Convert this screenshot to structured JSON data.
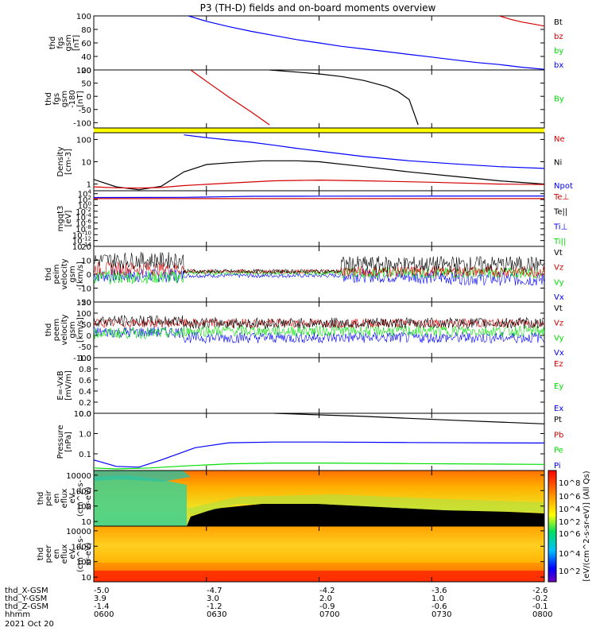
{
  "title": "P3 (TH-D) fields and on-board moments overview",
  "colors": {
    "black": "#000000",
    "red": "#d40000",
    "green": "#00e000",
    "blue": "#0000ff",
    "yellow": "#ffff00"
  },
  "chart_data": [
    {
      "type": "line",
      "panel_id": "fgs-gsm",
      "ylabel": [
        "thd",
        "fgs",
        "gsm",
        "[nT]"
      ],
      "ylim": [
        20,
        100
      ],
      "yticks": [
        "100",
        "80",
        "60",
        "40",
        "20"
      ],
      "legend": [
        {
          "name": "Bt",
          "color": "#000000"
        },
        {
          "name": "bz",
          "color": "#d40000"
        },
        {
          "name": "by",
          "color": "#00e000"
        },
        {
          "name": "bx",
          "color": "#0000ff"
        }
      ],
      "series": [
        {
          "name": "bx",
          "color": "#0000ff",
          "x": [
            6.42,
            6.5,
            6.6,
            6.7,
            6.8,
            6.9,
            7.0,
            7.1,
            7.2,
            7.3,
            7.4,
            7.5,
            7.6,
            7.7,
            7.8,
            7.9,
            8.0
          ],
          "y": [
            100,
            92,
            84,
            77,
            71,
            65,
            60,
            55,
            51,
            47,
            43,
            39,
            35,
            31,
            28,
            24,
            21
          ]
        },
        {
          "name": "bz",
          "color": "#d40000",
          "x": [
            7.8,
            7.85,
            7.9,
            7.95,
            8.0
          ],
          "y": [
            100,
            95,
            91,
            88,
            85
          ]
        }
      ]
    },
    {
      "type": "line",
      "panel_id": "fgs-gsm-180",
      "ylabel": [
        "thd",
        "fgs",
        "gsm",
        "-180",
        "[nT]"
      ],
      "ylim": [
        -120,
        100
      ],
      "yticks": [
        "100",
        "50",
        "0",
        "-50",
        "-100"
      ],
      "legend": [
        {
          "name": "By",
          "color": "#00e000"
        }
      ],
      "series": [
        {
          "name": "red",
          "color": "#d40000",
          "x": [
            6.43,
            6.5,
            6.6,
            6.7,
            6.78
          ],
          "y": [
            100,
            57,
            -3,
            -60,
            -108
          ]
        },
        {
          "name": "black",
          "color": "#000000",
          "x": [
            6.78,
            6.9,
            7.0,
            7.1,
            7.2,
            7.3,
            7.35,
            7.4,
            7.44
          ],
          "y": [
            100,
            92,
            85,
            75,
            60,
            37,
            18,
            -12,
            -108
          ]
        }
      ]
    },
    {
      "type": "line",
      "panel_id": "density",
      "ylabel": [
        "Density",
        "[cm-3]"
      ],
      "ylim": [
        0.5,
        200
      ],
      "yscale": "log",
      "yticks": [
        "100",
        "10",
        "1"
      ],
      "legend": [
        {
          "name": "Ne",
          "color": "#d40000"
        },
        {
          "name": "Ni",
          "color": "#000000"
        },
        {
          "name": "Npot",
          "color": "#0000ff"
        }
      ],
      "series": [
        {
          "name": "Ni",
          "color": "#000000",
          "x": [
            6.0,
            6.1,
            6.2,
            6.3,
            6.4,
            6.5,
            6.6,
            6.75,
            6.9,
            7.0,
            7.2,
            7.4,
            7.6,
            7.8,
            8.0
          ],
          "y": [
            1.6,
            0.75,
            0.55,
            0.8,
            3.5,
            7.5,
            9,
            11,
            11,
            10,
            6,
            3.5,
            2.2,
            1.4,
            1.0
          ]
        },
        {
          "name": "Ne",
          "color": "#d40000",
          "x": [
            6.0,
            6.1,
            6.2,
            6.3,
            6.4,
            6.6,
            6.8,
            7.0,
            7.2,
            7.5,
            7.8,
            8.0
          ],
          "y": [
            0.75,
            0.68,
            0.66,
            0.7,
            0.85,
            1.1,
            1.4,
            1.5,
            1.4,
            1.2,
            1.0,
            0.95
          ]
        },
        {
          "name": "Npot",
          "color": "#0000ff",
          "x": [
            6.4,
            6.5,
            6.6,
            6.7,
            6.8,
            6.9,
            7.0,
            7.2,
            7.4,
            7.6,
            7.8,
            8.0
          ],
          "y": [
            160,
            120,
            95,
            75,
            55,
            40,
            30,
            17,
            11,
            8,
            6,
            5
          ]
        }
      ]
    },
    {
      "type": "line",
      "panel_id": "temperature",
      "ylabel": [
        "mgqt3",
        "[eV]"
      ],
      "ylim": [
        -14,
        5
      ],
      "yscale": "log",
      "yticks": [
        "10^4",
        "10^2",
        "10^0",
        "10^-2",
        "10^-4",
        "10^-6",
        "10^-8",
        "10^-10",
        "10^-12",
        "10^-14"
      ],
      "legend": [
        {
          "name": "Te⊥",
          "color": "#d40000"
        },
        {
          "name": "Te||",
          "color": "#000000"
        },
        {
          "name": "Ti⊥",
          "color": "#0000ff"
        },
        {
          "name": "Ti||",
          "color": "#00e000"
        }
      ],
      "series": [
        {
          "name": "Ti",
          "color": "#0000ff",
          "x": [
            6.0,
            6.4,
            6.55,
            6.7,
            7.0,
            8.0
          ],
          "y": [
            2.7,
            2.75,
            2.9,
            3.1,
            3.15,
            3.2
          ]
        },
        {
          "name": "Te",
          "color": "#d40000",
          "x": [
            6.0,
            8.0
          ],
          "y": [
            2.3,
            2.3
          ]
        }
      ]
    },
    {
      "type": "line",
      "panel_id": "ion-velocity",
      "ylabel": [
        "thd",
        "peim",
        "velocity",
        "gsm",
        "[km/s]"
      ],
      "ylim": [
        -20,
        20
      ],
      "yticks": [
        "20",
        "10",
        "0",
        "-10",
        "-20"
      ],
      "legend": [
        {
          "name": "Vt",
          "color": "#000000"
        },
        {
          "name": "Vz",
          "color": "#d40000"
        },
        {
          "name": "Vy",
          "color": "#00e000"
        },
        {
          "name": "Vx",
          "color": "#0000ff"
        }
      ]
    },
    {
      "type": "line",
      "panel_id": "electron-velocity",
      "ylabel": [
        "thd",
        "peem",
        "velocity",
        "gsm",
        "[km/s]"
      ],
      "ylim": [
        -100,
        150
      ],
      "yticks": [
        "150",
        "100",
        "50",
        "0",
        "-50",
        "-100"
      ],
      "legend": [
        {
          "name": "Vt",
          "color": "#000000"
        },
        {
          "name": "Vz",
          "color": "#d40000"
        },
        {
          "name": "Vy",
          "color": "#00e000"
        },
        {
          "name": "Vx",
          "color": "#0000ff"
        }
      ]
    },
    {
      "type": "line",
      "panel_id": "efield",
      "ylabel": [
        "E=-VxB",
        "[mV/m]"
      ],
      "ylim": [
        0,
        1
      ],
      "yticks": [
        "1.0",
        "0.8",
        "0.6",
        "0.4",
        "0.2",
        "0.0"
      ],
      "legend": [
        {
          "name": "Ez",
          "color": "#d40000"
        },
        {
          "name": "Ey",
          "color": "#00e000"
        },
        {
          "name": "Ex",
          "color": "#0000ff"
        }
      ]
    },
    {
      "type": "line",
      "panel_id": "pressure",
      "ylabel": [
        "Pressure",
        "[nPa]"
      ],
      "ylim": [
        0.015,
        10
      ],
      "yscale": "log",
      "yticks": [
        "10.0",
        "1.0",
        "0.1"
      ],
      "legend": [
        {
          "name": "Pt",
          "color": "#000000"
        },
        {
          "name": "Pb",
          "color": "#d40000"
        },
        {
          "name": "Pe",
          "color": "#00e000"
        },
        {
          "name": "Pi",
          "color": "#0000ff"
        }
      ],
      "series": [
        {
          "name": "Pt",
          "color": "#000000",
          "x": [
            6.8,
            7.2,
            7.6,
            8.0
          ],
          "y": [
            10,
            7,
            4.5,
            3
          ]
        },
        {
          "name": "Pi",
          "color": "#0000ff",
          "x": [
            6.0,
            6.1,
            6.2,
            6.3,
            6.45,
            6.6,
            6.8,
            7.0,
            7.4,
            8.0
          ],
          "y": [
            0.05,
            0.024,
            0.022,
            0.05,
            0.2,
            0.35,
            0.38,
            0.38,
            0.36,
            0.34
          ]
        },
        {
          "name": "Pe",
          "color": "#00e000",
          "x": [
            6.0,
            6.1,
            6.25,
            6.4,
            6.6,
            6.8,
            7.0,
            7.4,
            8.0
          ],
          "y": [
            0.02,
            0.018,
            0.02,
            0.025,
            0.032,
            0.035,
            0.035,
            0.033,
            0.03
          ]
        }
      ]
    },
    {
      "type": "heatmap",
      "panel_id": "ion-spectrogram",
      "ylabel": [
        "thd",
        "peir",
        "en",
        "eflux",
        "eV",
        "(cm^2-s-",
        "sr-eV)"
      ],
      "ylim": [
        5,
        20000
      ],
      "yscale": "log",
      "yticks": [
        "10000",
        "1000",
        "100",
        "10"
      ]
    },
    {
      "type": "heatmap",
      "panel_id": "electron-spectrogram",
      "ylabel": [
        "thd",
        "peer",
        "en",
        "eflux",
        "eV",
        "(cm^2-s-",
        "sr-eV)"
      ],
      "ylim": [
        5,
        20000
      ],
      "yscale": "log",
      "yticks": [
        "10000",
        "1000",
        "100",
        "10"
      ]
    }
  ],
  "colorbar": {
    "ticks": [
      "10^8",
      "10^6",
      "10^4",
      "10^2",
      "10^6",
      "10^4",
      "10^2"
    ],
    "label": "[eV/(cm^2-s-sr-eV)] (All Qs)"
  },
  "footer": {
    "rows": [
      {
        "label": "thd_X-GSM",
        "values": [
          "-5.0",
          "-4.7",
          "-4.2",
          "-3.6",
          "-2.6"
        ]
      },
      {
        "label": "thd_Y-GSM",
        "values": [
          "3.9",
          "3.0",
          "2.0",
          "1.0",
          "-0.2"
        ]
      },
      {
        "label": "thd_Z-GSM",
        "values": [
          "-1.4",
          "-1.2",
          "-0.9",
          "-0.6",
          "-0.1"
        ]
      },
      {
        "label": "hhmm",
        "values": [
          "0600",
          "0630",
          "0700",
          "0730",
          "0800"
        ]
      }
    ],
    "date": "2021 Oct 20"
  }
}
